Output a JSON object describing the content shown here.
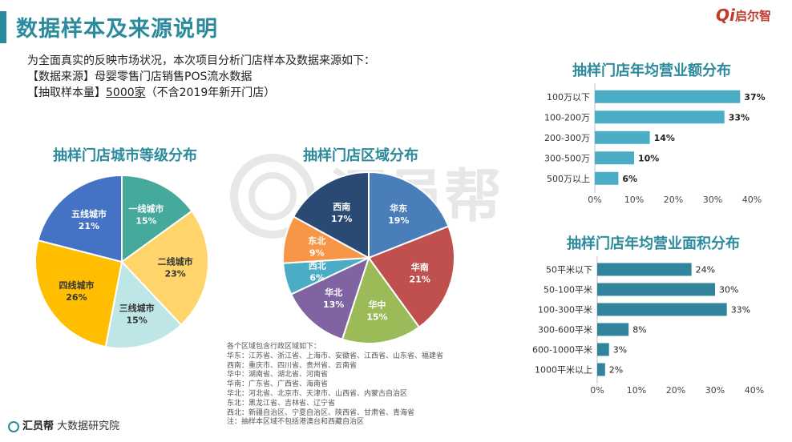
{
  "header": {
    "title": "数据样本及来源说明",
    "logo_text": "启尔智"
  },
  "intro": {
    "line1": "为全面真实的反映市场状况，本次项目分析门店样本及数据来源如下：",
    "line2_label": "【数据来源】",
    "line2_value": "母婴零售门店销售POS流水数据",
    "line3_label": "【抽取样本量】",
    "line3_value": "5000家",
    "line3_note": "（不含2019年新开门店）"
  },
  "watermark": {
    "text": "汇员帮"
  },
  "notes": {
    "title": "各个区域包含行政区域如下：",
    "lines": [
      "华东：江苏省、浙江省、上海市、安徽省、江西省、山东省、福建省",
      "西南：重庆市、四川省、贵州省、云南省",
      "华中：湖南省、湖北省、河南省",
      "华南：广东省、广西省、海南省",
      "华北：河北省、北京市、天津市、山西省、内蒙古自治区",
      "东北：黑龙江省、吉林省、辽宁省",
      "西北：新疆自治区、宁夏自治区、陕西省、甘肃省、青海省",
      "注：抽样本区域不包括港澳台和西藏自治区"
    ]
  },
  "footer": {
    "brand": "汇员帮",
    "text": "大数据研究院"
  },
  "chart_data": [
    {
      "type": "pie",
      "title": "抽样门店城市等级分布",
      "categories": [
        "一线城市",
        "二线城市",
        "三线城市",
        "四线城市",
        "五线城市"
      ],
      "values": [
        15,
        23,
        15,
        26,
        21
      ],
      "colors": [
        "#45a99b",
        "#ffd56b",
        "#bfe6e7",
        "#ffbf00",
        "#4472c4"
      ],
      "label_colors": [
        "#ffffff",
        "#333333",
        "#333333",
        "#333333",
        "#ffffff"
      ],
      "unit": "%"
    },
    {
      "type": "pie",
      "title": "抽样门店区域分布",
      "categories": [
        "华东",
        "华南",
        "华中",
        "华北",
        "西北",
        "东北",
        "西南"
      ],
      "values": [
        19,
        21,
        15,
        13,
        6,
        9,
        17
      ],
      "colors": [
        "#4a7ebb",
        "#c0504d",
        "#9bbb59",
        "#8064a2",
        "#4bacc6",
        "#f79646",
        "#2b4a73"
      ],
      "label_colors": [
        "#ffffff",
        "#ffffff",
        "#ffffff",
        "#ffffff",
        "#ffffff",
        "#ffffff",
        "#ffffff"
      ],
      "unit": "%"
    },
    {
      "type": "bar",
      "orientation": "horizontal",
      "title": "抽样门店年均营业额分布",
      "categories": [
        "100万以下",
        "100-200万",
        "200-300万",
        "300-500万",
        "500万以上"
      ],
      "values": [
        37,
        33,
        14,
        10,
        6
      ],
      "value_labels": [
        "37%",
        "33%",
        "14%",
        "10%",
        "6%"
      ],
      "xlim": [
        0,
        40
      ],
      "xticks": [
        "0%",
        "10%",
        "20%",
        "30%",
        "40%"
      ],
      "color": "#4bacc6",
      "bold_labels": true
    },
    {
      "type": "bar",
      "orientation": "horizontal",
      "title": "抽样门店年均营业面积分布",
      "categories": [
        "50平米以下",
        "50-100平米",
        "100-300平米",
        "300-600平米",
        "600-1000平米",
        "1000平米以上"
      ],
      "values": [
        24,
        30,
        33,
        8,
        3,
        2
      ],
      "value_labels": [
        "24%",
        "30%",
        "33%",
        "8%",
        "3%",
        "2%"
      ],
      "xlim": [
        0,
        40
      ],
      "xticks": [
        "0%",
        "10%",
        "20%",
        "30%",
        "40%"
      ],
      "color": "#31849b",
      "bold_labels": false
    }
  ]
}
